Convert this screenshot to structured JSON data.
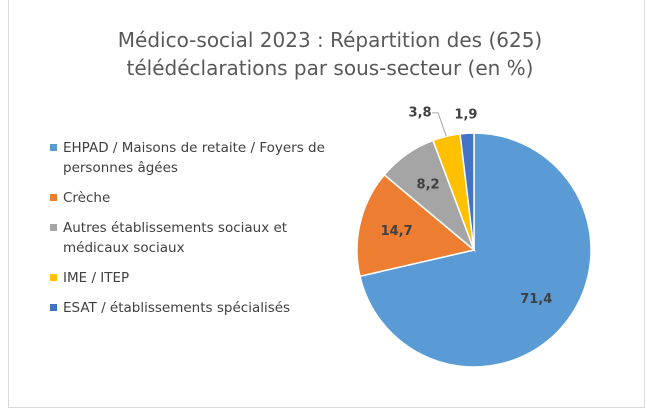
{
  "chart_data": {
    "type": "pie",
    "title": "Médico-social 2023 : Répartition des (625)\ntélédéclarations par sous-secteur (en %)",
    "categories": [
      "EHPAD / Maisons de retaite / Foyers de personnes âgées",
      "Crèche",
      "Autres établissements sociaux et médicaux sociaux",
      "IME / ITEP",
      "ESAT / établissements spécialisés"
    ],
    "values": [
      71.4,
      14.7,
      8.2,
      3.8,
      1.9
    ],
    "value_labels": [
      "71,4",
      "14,7",
      "8,2",
      "3,8",
      "1,9"
    ],
    "colors": [
      "#5b9bd5",
      "#ed7d31",
      "#a5a5a5",
      "#ffc000",
      "#4472c4"
    ],
    "legend": "left"
  }
}
